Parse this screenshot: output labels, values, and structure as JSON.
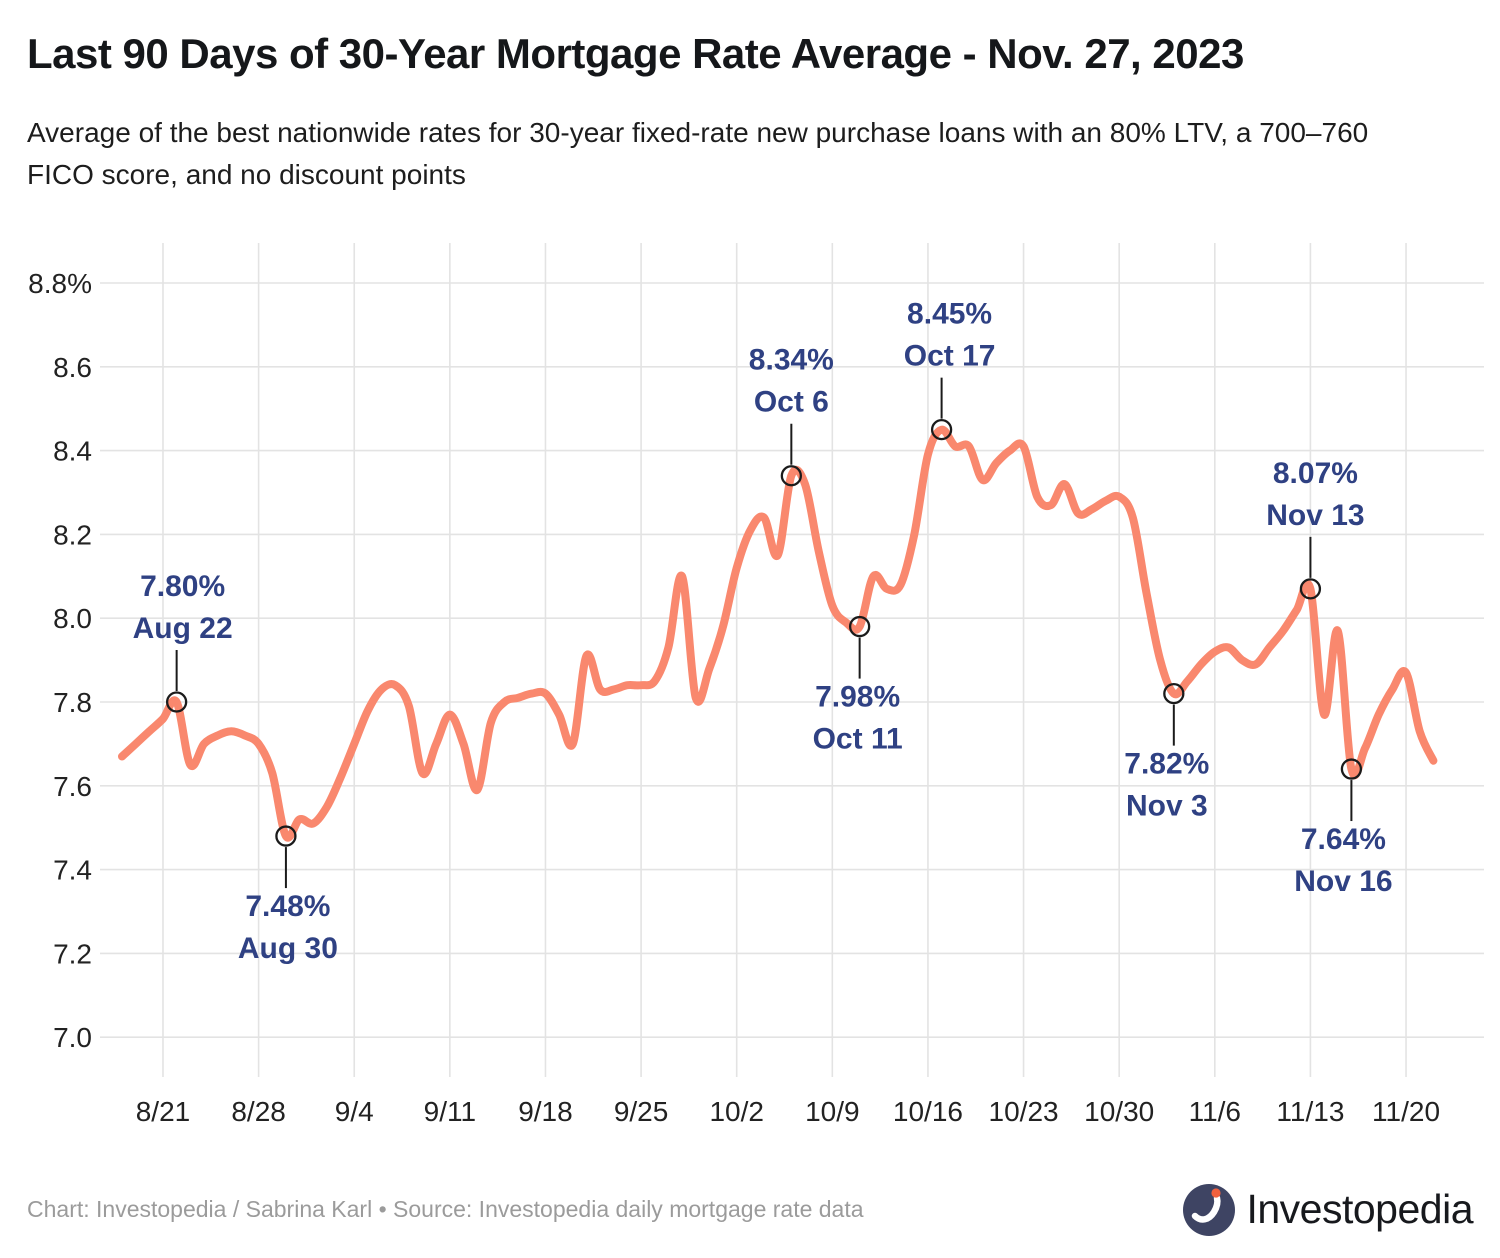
{
  "header": {
    "title": "Last 90 Days of 30-Year Mortgage Rate Average - Nov. 27, 2023",
    "subtitle": "Average of the best nationwide rates for 30-year fixed-rate new purchase loans with an 80% LTV, a 700–760 FICO score, and no discount points"
  },
  "footer": {
    "credit": "Chart: Investopedia / Sabrina Karl • Source: Investopedia daily mortgage rate data",
    "logo_text": "Investopedia"
  },
  "colors": {
    "line": "#F9886E",
    "annotation_text": "#2F4183",
    "marker_stroke": "#1b1b1b",
    "gridline": "#e3e3e3",
    "axis_label": "#222222",
    "logo_circle": "#3E4463",
    "logo_dot": "#F0603E"
  },
  "chart_data": {
    "type": "line",
    "title": "Last 90 Days of 30-Year Mortgage Rate Average - Nov. 27, 2023",
    "subtitle": "Average of the best nationwide rates for 30-year fixed-rate new purchase loans with an 80% LTV, a 700–760 FICO score, and no discount points",
    "xlabel": "",
    "ylabel": "",
    "ylim": [
      7.0,
      8.8
    ],
    "grid": true,
    "legend": false,
    "yticks": [
      {
        "v": 8.8,
        "label": "8.8%"
      },
      {
        "v": 8.6,
        "label": "8.6"
      },
      {
        "v": 8.4,
        "label": "8.4"
      },
      {
        "v": 8.2,
        "label": "8.2"
      },
      {
        "v": 8.0,
        "label": "8.0"
      },
      {
        "v": 7.8,
        "label": "7.8"
      },
      {
        "v": 7.6,
        "label": "7.6"
      },
      {
        "v": 7.4,
        "label": "7.4"
      },
      {
        "v": 7.2,
        "label": "7.2"
      },
      {
        "v": 7.0,
        "label": "7.0"
      }
    ],
    "xticks": [
      "8/21",
      "8/28",
      "9/4",
      "9/11",
      "9/18",
      "9/25",
      "10/2",
      "10/9",
      "10/16",
      "10/23",
      "10/30",
      "11/6",
      "11/13",
      "11/20"
    ],
    "series": [
      {
        "name": "30-year mortgage rate average (%)",
        "color": "#F9886E",
        "points": [
          [
            "8/18",
            7.67
          ],
          [
            "8/19",
            7.7
          ],
          [
            "8/20",
            7.73
          ],
          [
            "8/21",
            7.76
          ],
          [
            "8/22",
            7.8
          ],
          [
            "8/23",
            7.65
          ],
          [
            "8/24",
            7.7
          ],
          [
            "8/25",
            7.72
          ],
          [
            "8/26",
            7.73
          ],
          [
            "8/27",
            7.72
          ],
          [
            "8/28",
            7.7
          ],
          [
            "8/29",
            7.63
          ],
          [
            "8/30",
            7.48
          ],
          [
            "8/31",
            7.52
          ],
          [
            "9/1",
            7.51
          ],
          [
            "9/2",
            7.55
          ],
          [
            "9/3",
            7.62
          ],
          [
            "9/4",
            7.7
          ],
          [
            "9/5",
            7.78
          ],
          [
            "9/6",
            7.83
          ],
          [
            "9/7",
            7.84
          ],
          [
            "9/8",
            7.79
          ],
          [
            "9/9",
            7.63
          ],
          [
            "9/10",
            7.7
          ],
          [
            "9/11",
            7.77
          ],
          [
            "9/12",
            7.7
          ],
          [
            "9/13",
            7.59
          ],
          [
            "9/14",
            7.75
          ],
          [
            "9/15",
            7.8
          ],
          [
            "9/16",
            7.81
          ],
          [
            "9/17",
            7.82
          ],
          [
            "9/18",
            7.82
          ],
          [
            "9/19",
            7.77
          ],
          [
            "9/20",
            7.7
          ],
          [
            "9/21",
            7.91
          ],
          [
            "9/22",
            7.83
          ],
          [
            "9/23",
            7.83
          ],
          [
            "9/24",
            7.84
          ],
          [
            "9/25",
            7.84
          ],
          [
            "9/26",
            7.85
          ],
          [
            "9/27",
            7.93
          ],
          [
            "9/28",
            8.1
          ],
          [
            "9/29",
            7.81
          ],
          [
            "9/30",
            7.88
          ],
          [
            "10/1",
            7.98
          ],
          [
            "10/2",
            8.12
          ],
          [
            "10/3",
            8.21
          ],
          [
            "10/4",
            8.24
          ],
          [
            "10/5",
            8.15
          ],
          [
            "10/6",
            8.34
          ],
          [
            "10/7",
            8.32
          ],
          [
            "10/8",
            8.16
          ],
          [
            "10/9",
            8.03
          ],
          [
            "10/10",
            7.99
          ],
          [
            "10/11",
            7.98
          ],
          [
            "10/12",
            8.1
          ],
          [
            "10/13",
            8.07
          ],
          [
            "10/14",
            8.08
          ],
          [
            "10/15",
            8.2
          ],
          [
            "10/16",
            8.39
          ],
          [
            "10/17",
            8.45
          ],
          [
            "10/18",
            8.41
          ],
          [
            "10/19",
            8.41
          ],
          [
            "10/20",
            8.33
          ],
          [
            "10/21",
            8.37
          ],
          [
            "10/22",
            8.4
          ],
          [
            "10/23",
            8.41
          ],
          [
            "10/24",
            8.29
          ],
          [
            "10/25",
            8.27
          ],
          [
            "10/26",
            8.32
          ],
          [
            "10/27",
            8.25
          ],
          [
            "10/28",
            8.26
          ],
          [
            "10/29",
            8.28
          ],
          [
            "10/30",
            8.29
          ],
          [
            "10/31",
            8.24
          ],
          [
            "11/1",
            8.06
          ],
          [
            "11/2",
            7.9
          ],
          [
            "11/3",
            7.82
          ],
          [
            "11/4",
            7.85
          ],
          [
            "11/5",
            7.89
          ],
          [
            "11/6",
            7.92
          ],
          [
            "11/7",
            7.93
          ],
          [
            "11/8",
            7.9
          ],
          [
            "11/9",
            7.89
          ],
          [
            "11/10",
            7.93
          ],
          [
            "11/11",
            7.97
          ],
          [
            "11/12",
            8.02
          ],
          [
            "11/13",
            8.07
          ],
          [
            "11/14",
            7.77
          ],
          [
            "11/15",
            7.97
          ],
          [
            "11/16",
            7.64
          ],
          [
            "11/17",
            7.69
          ],
          [
            "11/18",
            7.77
          ],
          [
            "11/19",
            7.83
          ],
          [
            "11/20",
            7.87
          ],
          [
            "11/21",
            7.73
          ],
          [
            "11/22",
            7.66
          ]
        ]
      }
    ],
    "annotations": [
      {
        "value_label": "7.80%",
        "date_label": "Aug 22",
        "date": "8/22",
        "value": 7.8,
        "side": "above",
        "dx": 6
      },
      {
        "value_label": "7.48%",
        "date_label": "Aug 30",
        "date": "8/30",
        "value": 7.48,
        "side": "below",
        "dx": 2
      },
      {
        "value_label": "8.34%",
        "date_label": "Oct 6",
        "date": "10/6",
        "value": 8.34,
        "side": "above",
        "dx": 0
      },
      {
        "value_label": "7.98%",
        "date_label": "Oct 11",
        "date": "10/11",
        "value": 7.98,
        "side": "below",
        "dx": -2
      },
      {
        "value_label": "8.45%",
        "date_label": "Oct 17",
        "date": "10/17",
        "value": 8.45,
        "side": "above",
        "dx": 8
      },
      {
        "value_label": "7.82%",
        "date_label": "Nov 3",
        "date": "11/3",
        "value": 7.82,
        "side": "below",
        "dx": -7
      },
      {
        "value_label": "8.07%",
        "date_label": "Nov 13",
        "date": "11/13",
        "value": 8.07,
        "side": "above",
        "dx": 5
      },
      {
        "value_label": "7.64%",
        "date_label": "Nov 16",
        "date": "11/16",
        "value": 7.64,
        "side": "below",
        "dx": -8
      }
    ]
  }
}
